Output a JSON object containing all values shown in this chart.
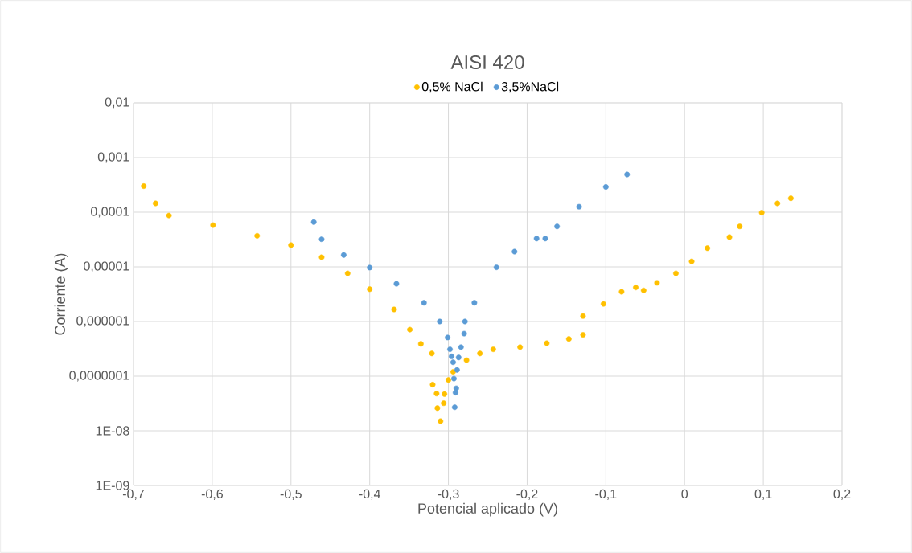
{
  "chart_data": {
    "type": "scatter",
    "title": "AISI 420",
    "xlabel": "Potencial aplicado (V)",
    "ylabel": "Corriente (A)",
    "log": "y",
    "grid": true,
    "legend": "top",
    "marker": "circle",
    "xlim": [
      -0.7,
      0.2
    ],
    "ylim": [
      1e-09,
      0.01
    ],
    "xticks": [
      {
        "value": -0.7,
        "label": "-0,7"
      },
      {
        "value": -0.6,
        "label": "-0,6"
      },
      {
        "value": -0.5,
        "label": "-0,5"
      },
      {
        "value": -0.4,
        "label": "-0,4"
      },
      {
        "value": -0.3,
        "label": "-0,3"
      },
      {
        "value": -0.2,
        "label": "-0,2"
      },
      {
        "value": -0.1,
        "label": "-0,1"
      },
      {
        "value": 0,
        "label": "0"
      },
      {
        "value": 0.1,
        "label": "0,1"
      },
      {
        "value": 0.2,
        "label": "0,2"
      }
    ],
    "yticks": [
      {
        "value": 1e-09,
        "label": "1E-09"
      },
      {
        "value": 1e-08,
        "label": "1E-08"
      },
      {
        "value": 1e-07,
        "label": "0,0000001"
      },
      {
        "value": 1e-06,
        "label": "0,000001"
      },
      {
        "value": 1e-05,
        "label": "0,00001"
      },
      {
        "value": 0.0001,
        "label": "0,0001"
      },
      {
        "value": 0.001,
        "label": "0,001"
      },
      {
        "value": 0.01,
        "label": "0,01"
      }
    ],
    "series": [
      {
        "name": "0,5% NaCl",
        "color": "#ffc000",
        "x": [
          -0.687,
          -0.672,
          -0.655,
          -0.599,
          -0.543,
          -0.5,
          -0.461,
          -0.428,
          -0.4,
          -0.369,
          -0.349,
          -0.335,
          -0.321,
          -0.32,
          -0.315,
          -0.314,
          -0.31,
          -0.306,
          -0.305,
          -0.3,
          -0.294,
          -0.277,
          -0.26,
          -0.243,
          -0.209,
          -0.175,
          -0.147,
          -0.129,
          -0.129,
          -0.103,
          -0.08,
          -0.062,
          -0.052,
          -0.035,
          -0.011,
          0.009,
          0.029,
          0.057,
          0.07,
          0.098,
          0.118,
          0.135
        ],
        "values": [
          0.0003,
          0.000145,
          8.7e-05,
          5.8e-05,
          3.7e-05,
          2.5e-05,
          1.5e-05,
          7.6e-06,
          3.9e-06,
          1.66e-06,
          7.1e-07,
          3.9e-07,
          2.6e-07,
          7e-08,
          4.8e-08,
          2.6e-08,
          1.5e-08,
          3.2e-08,
          4.7e-08,
          8.5e-08,
          1.2e-07,
          1.96e-07,
          2.6e-07,
          3.1e-07,
          3.4e-07,
          4e-07,
          4.8e-07,
          5.7e-07,
          1.26e-06,
          2.1e-06,
          3.5e-06,
          4.2e-06,
          3.7e-06,
          5.1e-06,
          7.6e-06,
          1.26e-05,
          2.2e-05,
          3.5e-05,
          5.5e-05,
          9.8e-05,
          0.000145,
          0.00018
        ]
      },
      {
        "name": "3,5%NaCl",
        "color": "#5b9bd5",
        "x": [
          -0.471,
          -0.461,
          -0.433,
          -0.4,
          -0.366,
          -0.331,
          -0.311,
          -0.301,
          -0.298,
          -0.296,
          -0.294,
          -0.293,
          -0.29,
          -0.291,
          -0.292,
          -0.289,
          -0.287,
          -0.284,
          -0.28,
          -0.279,
          -0.267,
          -0.239,
          -0.216,
          -0.188,
          -0.177,
          -0.162,
          -0.134,
          -0.1,
          -0.073
        ],
        "values": [
          6.6e-05,
          3.2e-05,
          1.65e-05,
          9.7e-06,
          4.9e-06,
          2.2e-06,
          1e-06,
          5.1e-07,
          3.1e-07,
          2.3e-07,
          1.8e-07,
          9e-08,
          6e-08,
          5e-08,
          2.7e-08,
          1.3e-07,
          2.2e-07,
          3.4e-07,
          6e-07,
          1e-06,
          2.2e-06,
          9.8e-06,
          1.9e-05,
          3.3e-05,
          3.3e-05,
          5.5e-05,
          0.000126,
          0.00029,
          0.00049
        ]
      }
    ]
  }
}
